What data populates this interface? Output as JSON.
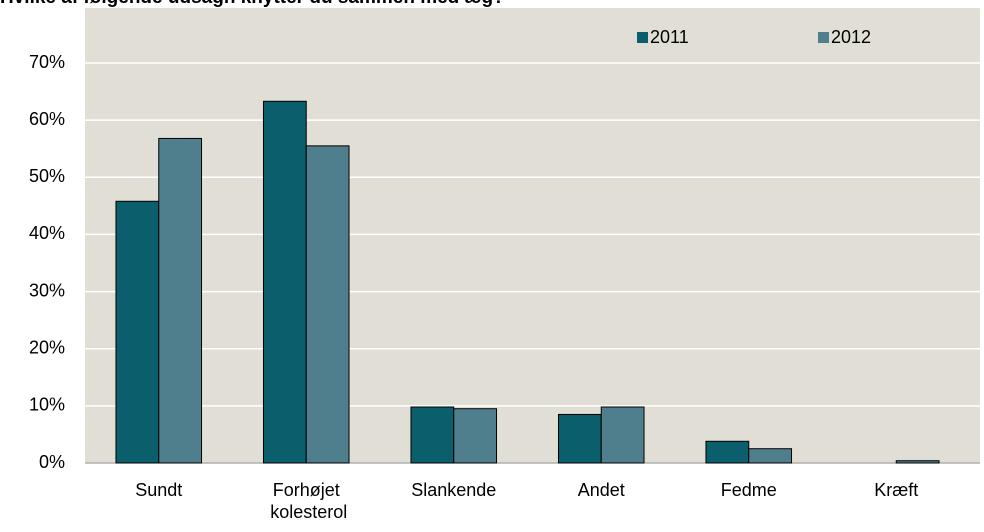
{
  "chart_data": {
    "type": "bar",
    "title": "Hvilke af følgende udsagn knytter du sammen med æg?",
    "categories": [
      "Sundt",
      "Forhøjet kolesterol",
      "Slankende",
      "Andet",
      "Fedme",
      "Kræft"
    ],
    "series": [
      {
        "name": "2011",
        "color": "#0b5e6b",
        "values": [
          45.8,
          63.3,
          9.8,
          8.5,
          3.8,
          0
        ]
      },
      {
        "name": "2012",
        "color": "#4f7f8c",
        "values": [
          56.8,
          55.5,
          9.5,
          9.8,
          2.5,
          0.4
        ]
      }
    ],
    "ylim": [
      0,
      70
    ],
    "yticks": [
      {
        "value": 0,
        "label": "0%"
      },
      {
        "value": 10,
        "label": "10%"
      },
      {
        "value": 20,
        "label": "20%"
      },
      {
        "value": 30,
        "label": "30%"
      },
      {
        "value": 40,
        "label": "40%"
      },
      {
        "value": 50,
        "label": "50%"
      },
      {
        "value": 60,
        "label": "60%"
      },
      {
        "value": 70,
        "label": "70%"
      }
    ],
    "grid": true,
    "legend": "top"
  }
}
